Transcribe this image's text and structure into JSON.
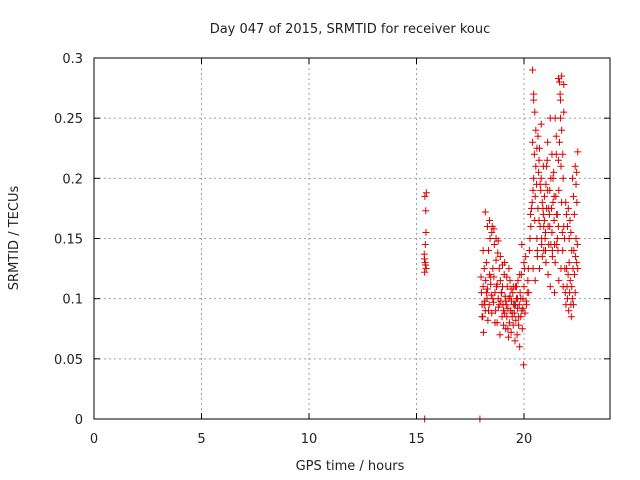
{
  "chart_data": {
    "type": "scatter",
    "title": "Day 047 of 2015, SRMTID for receiver kouc",
    "xlabel": "GPS time / hours",
    "ylabel": "SRMTID / TECUs",
    "xlim": [
      0,
      24
    ],
    "ylim": [
      0,
      0.3
    ],
    "xticks": [
      0,
      5,
      10,
      15,
      20
    ],
    "yticks": [
      0,
      0.05,
      0.1,
      0.15,
      0.2,
      0.25,
      0.3
    ],
    "xtick_labels": [
      "0",
      "5",
      "10",
      "15",
      "20"
    ],
    "ytick_labels": [
      "0",
      "0.05",
      "0.1",
      "0.15",
      "0.2",
      "0.25",
      "0.3"
    ],
    "grid": true,
    "marker": "+",
    "marker_color": "#dd0000",
    "series": [
      {
        "name": "SRMTID",
        "x": [
          15.37,
          15.4,
          15.42,
          15.45,
          15.38,
          15.41,
          15.44,
          15.36,
          15.43,
          15.39,
          15.46,
          15.38,
          17.95,
          18.0,
          18.02,
          18.05,
          18.08,
          18.1,
          18.12,
          18.15,
          18.18,
          18.2,
          18.22,
          18.25,
          18.28,
          18.3,
          18.32,
          18.35,
          18.38,
          18.4,
          18.42,
          18.45,
          18.48,
          18.5,
          18.52,
          18.55,
          18.58,
          18.6,
          18.62,
          18.65,
          18.68,
          18.7,
          18.72,
          18.75,
          18.78,
          18.8,
          18.82,
          18.85,
          18.88,
          18.9,
          18.92,
          18.95,
          18.98,
          19.0,
          19.02,
          19.05,
          19.08,
          19.1,
          19.12,
          19.15,
          19.18,
          19.2,
          19.22,
          19.25,
          19.28,
          19.3,
          19.32,
          19.35,
          19.38,
          19.4,
          19.42,
          19.45,
          19.48,
          19.5,
          19.52,
          19.55,
          19.58,
          19.6,
          19.62,
          19.65,
          19.68,
          19.7,
          19.72,
          19.75,
          19.78,
          19.8,
          19.82,
          19.85,
          19.88,
          19.9,
          19.92,
          19.95,
          19.98,
          20.0,
          20.02,
          20.05,
          20.08,
          20.1,
          18.05,
          18.15,
          18.25,
          18.35,
          18.45,
          18.55,
          18.65,
          18.75,
          18.85,
          18.95,
          19.05,
          19.15,
          19.25,
          19.35,
          19.45,
          19.55,
          19.65,
          19.75,
          19.85,
          19.95,
          18.1,
          18.3,
          18.5,
          18.7,
          18.9,
          19.1,
          19.3,
          19.5,
          19.7,
          19.9,
          18.2,
          18.4,
          18.6,
          18.8,
          19.0,
          19.2,
          19.4,
          19.6,
          19.8,
          20.0,
          20.12,
          20.15,
          20.18,
          20.2,
          20.22,
          20.25,
          20.28,
          20.3,
          20.32,
          20.35,
          20.38,
          20.4,
          20.42,
          20.45,
          20.48,
          20.5,
          20.52,
          20.55,
          20.58,
          20.6,
          20.62,
          20.65,
          20.68,
          20.7,
          20.72,
          20.75,
          20.78,
          20.8,
          20.82,
          20.85,
          20.88,
          20.9,
          20.92,
          20.95,
          20.98,
          21.0,
          21.02,
          21.05,
          21.08,
          21.1,
          21.12,
          21.15,
          21.18,
          21.2,
          21.22,
          21.25,
          21.28,
          21.3,
          21.32,
          21.35,
          21.38,
          21.4,
          21.42,
          21.45,
          21.48,
          21.5,
          21.52,
          21.55,
          21.58,
          21.6,
          21.62,
          21.65,
          21.68,
          21.7,
          21.72,
          21.75,
          21.78,
          21.8,
          21.82,
          21.85,
          21.88,
          21.9,
          20.4,
          20.45,
          20.5,
          20.55,
          20.6,
          20.65,
          20.7,
          20.75,
          20.8,
          20.85,
          20.9,
          20.95,
          21.0,
          21.05,
          21.1,
          21.15,
          21.2,
          21.25,
          21.3,
          21.35,
          21.4,
          21.45,
          21.5,
          21.55,
          21.6,
          21.65,
          21.7,
          21.75,
          21.8,
          21.85,
          20.42,
          20.52,
          20.62,
          20.72,
          20.82,
          20.92,
          21.02,
          21.12,
          21.22,
          21.32,
          21.42,
          21.52,
          21.62,
          21.72,
          21.82,
          21.92,
          21.95,
          21.98,
          22.0,
          22.02,
          22.05,
          22.08,
          22.1,
          22.12,
          22.15,
          22.18,
          22.2,
          22.22,
          22.25,
          22.28,
          22.3,
          22.32,
          22.35,
          22.38,
          22.4,
          22.42,
          22.45,
          22.48,
          22.5,
          21.94,
          21.98,
          22.02,
          22.06,
          22.1,
          22.14,
          22.18,
          22.22,
          22.26,
          22.3,
          22.34,
          22.38,
          22.42,
          22.46,
          20.45,
          21.6,
          21.75,
          21.85,
          22.5,
          22.45
        ],
        "y": [
          0.133,
          0.13,
          0.128,
          0.125,
          0.122,
          0.145,
          0.155,
          0.137,
          0.173,
          0.185,
          0.188,
          0.0,
          0.0,
          0.118,
          0.105,
          0.095,
          0.085,
          0.11,
          0.072,
          0.125,
          0.098,
          0.09,
          0.115,
          0.13,
          0.1,
          0.108,
          0.082,
          0.14,
          0.095,
          0.12,
          0.15,
          0.112,
          0.103,
          0.088,
          0.16,
          0.125,
          0.097,
          0.118,
          0.145,
          0.105,
          0.09,
          0.132,
          0.11,
          0.08,
          0.138,
          0.1,
          0.093,
          0.125,
          0.07,
          0.115,
          0.098,
          0.105,
          0.085,
          0.11,
          0.095,
          0.078,
          0.12,
          0.088,
          0.102,
          0.075,
          0.095,
          0.085,
          0.11,
          0.092,
          0.068,
          0.1,
          0.08,
          0.115,
          0.09,
          0.072,
          0.098,
          0.085,
          0.105,
          0.078,
          0.095,
          0.088,
          0.065,
          0.11,
          0.082,
          0.1,
          0.07,
          0.092,
          0.115,
          0.078,
          0.095,
          0.06,
          0.105,
          0.085,
          0.12,
          0.09,
          0.075,
          0.1,
          0.045,
          0.11,
          0.125,
          0.088,
          0.135,
          0.098,
          0.085,
          0.095,
          0.105,
          0.09,
          0.118,
          0.1,
          0.08,
          0.112,
          0.095,
          0.105,
          0.09,
          0.098,
          0.075,
          0.102,
          0.088,
          0.095,
          0.11,
          0.085,
          0.1,
          0.092,
          0.14,
          0.16,
          0.155,
          0.15,
          0.135,
          0.13,
          0.125,
          0.11,
          0.1,
          0.145,
          0.172,
          0.165,
          0.158,
          0.148,
          0.128,
          0.118,
          0.108,
          0.095,
          0.12,
          0.13,
          0.095,
          0.105,
          0.115,
          0.125,
          0.105,
          0.14,
          0.15,
          0.17,
          0.16,
          0.175,
          0.18,
          0.23,
          0.19,
          0.2,
          0.22,
          0.165,
          0.185,
          0.21,
          0.195,
          0.15,
          0.14,
          0.175,
          0.205,
          0.165,
          0.225,
          0.16,
          0.19,
          0.245,
          0.15,
          0.135,
          0.175,
          0.21,
          0.16,
          0.185,
          0.15,
          0.14,
          0.195,
          0.175,
          0.215,
          0.23,
          0.16,
          0.145,
          0.17,
          0.19,
          0.25,
          0.2,
          0.175,
          0.155,
          0.14,
          0.18,
          0.205,
          0.165,
          0.145,
          0.13,
          0.185,
          0.22,
          0.17,
          0.15,
          0.14,
          0.16,
          0.19,
          0.23,
          0.27,
          0.25,
          0.21,
          0.18,
          0.155,
          0.14,
          0.2,
          0.16,
          0.15,
          0.125,
          0.29,
          0.27,
          0.255,
          0.24,
          0.225,
          0.235,
          0.215,
          0.195,
          0.2,
          0.18,
          0.17,
          0.165,
          0.155,
          0.21,
          0.19,
          0.175,
          0.16,
          0.145,
          0.22,
          0.2,
          0.185,
          0.25,
          0.235,
          0.17,
          0.215,
          0.28,
          0.265,
          0.24,
          0.22,
          0.255,
          0.125,
          0.115,
          0.135,
          0.125,
          0.145,
          0.14,
          0.13,
          0.12,
          0.11,
          0.135,
          0.105,
          0.145,
          0.115,
          0.125,
          0.11,
          0.105,
          0.095,
          0.125,
          0.11,
          0.1,
          0.12,
          0.09,
          0.13,
          0.105,
          0.115,
          0.095,
          0.085,
          0.11,
          0.1,
          0.125,
          0.095,
          0.14,
          0.12,
          0.105,
          0.135,
          0.15,
          0.13,
          0.145,
          0.125,
          0.18,
          0.17,
          0.16,
          0.175,
          0.15,
          0.165,
          0.155,
          0.14,
          0.2,
          0.185,
          0.17,
          0.21,
          0.195,
          0.18,
          0.265,
          0.283,
          0.285,
          0.278,
          0.222,
          0.205
        ]
      }
    ]
  }
}
